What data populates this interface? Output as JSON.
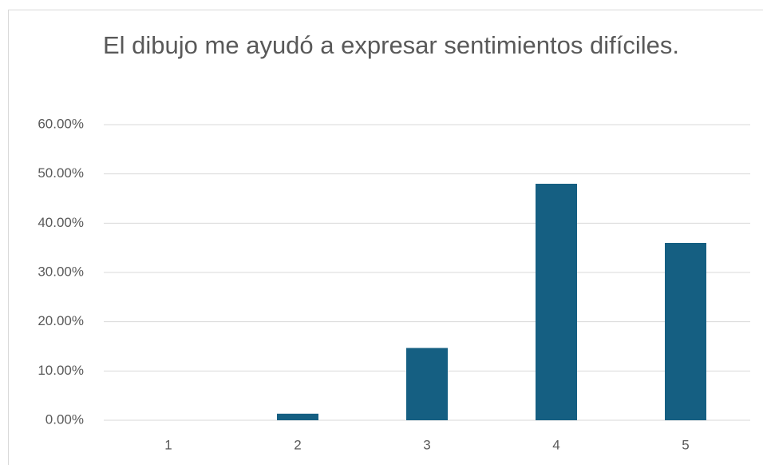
{
  "chart_data": {
    "type": "bar",
    "title": "El dibujo me ayudó a expresar sentimientos difíciles.",
    "categories": [
      "1",
      "2",
      "3",
      "4",
      "5"
    ],
    "values": [
      0,
      1.33,
      14.67,
      48,
      36
    ],
    "color": "#155f82",
    "ylim": [
      0,
      60
    ],
    "yticks": [
      {
        "value": 0,
        "label": "0.00%"
      },
      {
        "value": 10,
        "label": "10.00%"
      },
      {
        "value": 20,
        "label": "20.00%"
      },
      {
        "value": 30,
        "label": "30.00%"
      },
      {
        "value": 40,
        "label": "40.00%"
      },
      {
        "value": 50,
        "label": "50.00%"
      },
      {
        "value": 60,
        "label": "60.00%"
      }
    ],
    "grid": true
  }
}
